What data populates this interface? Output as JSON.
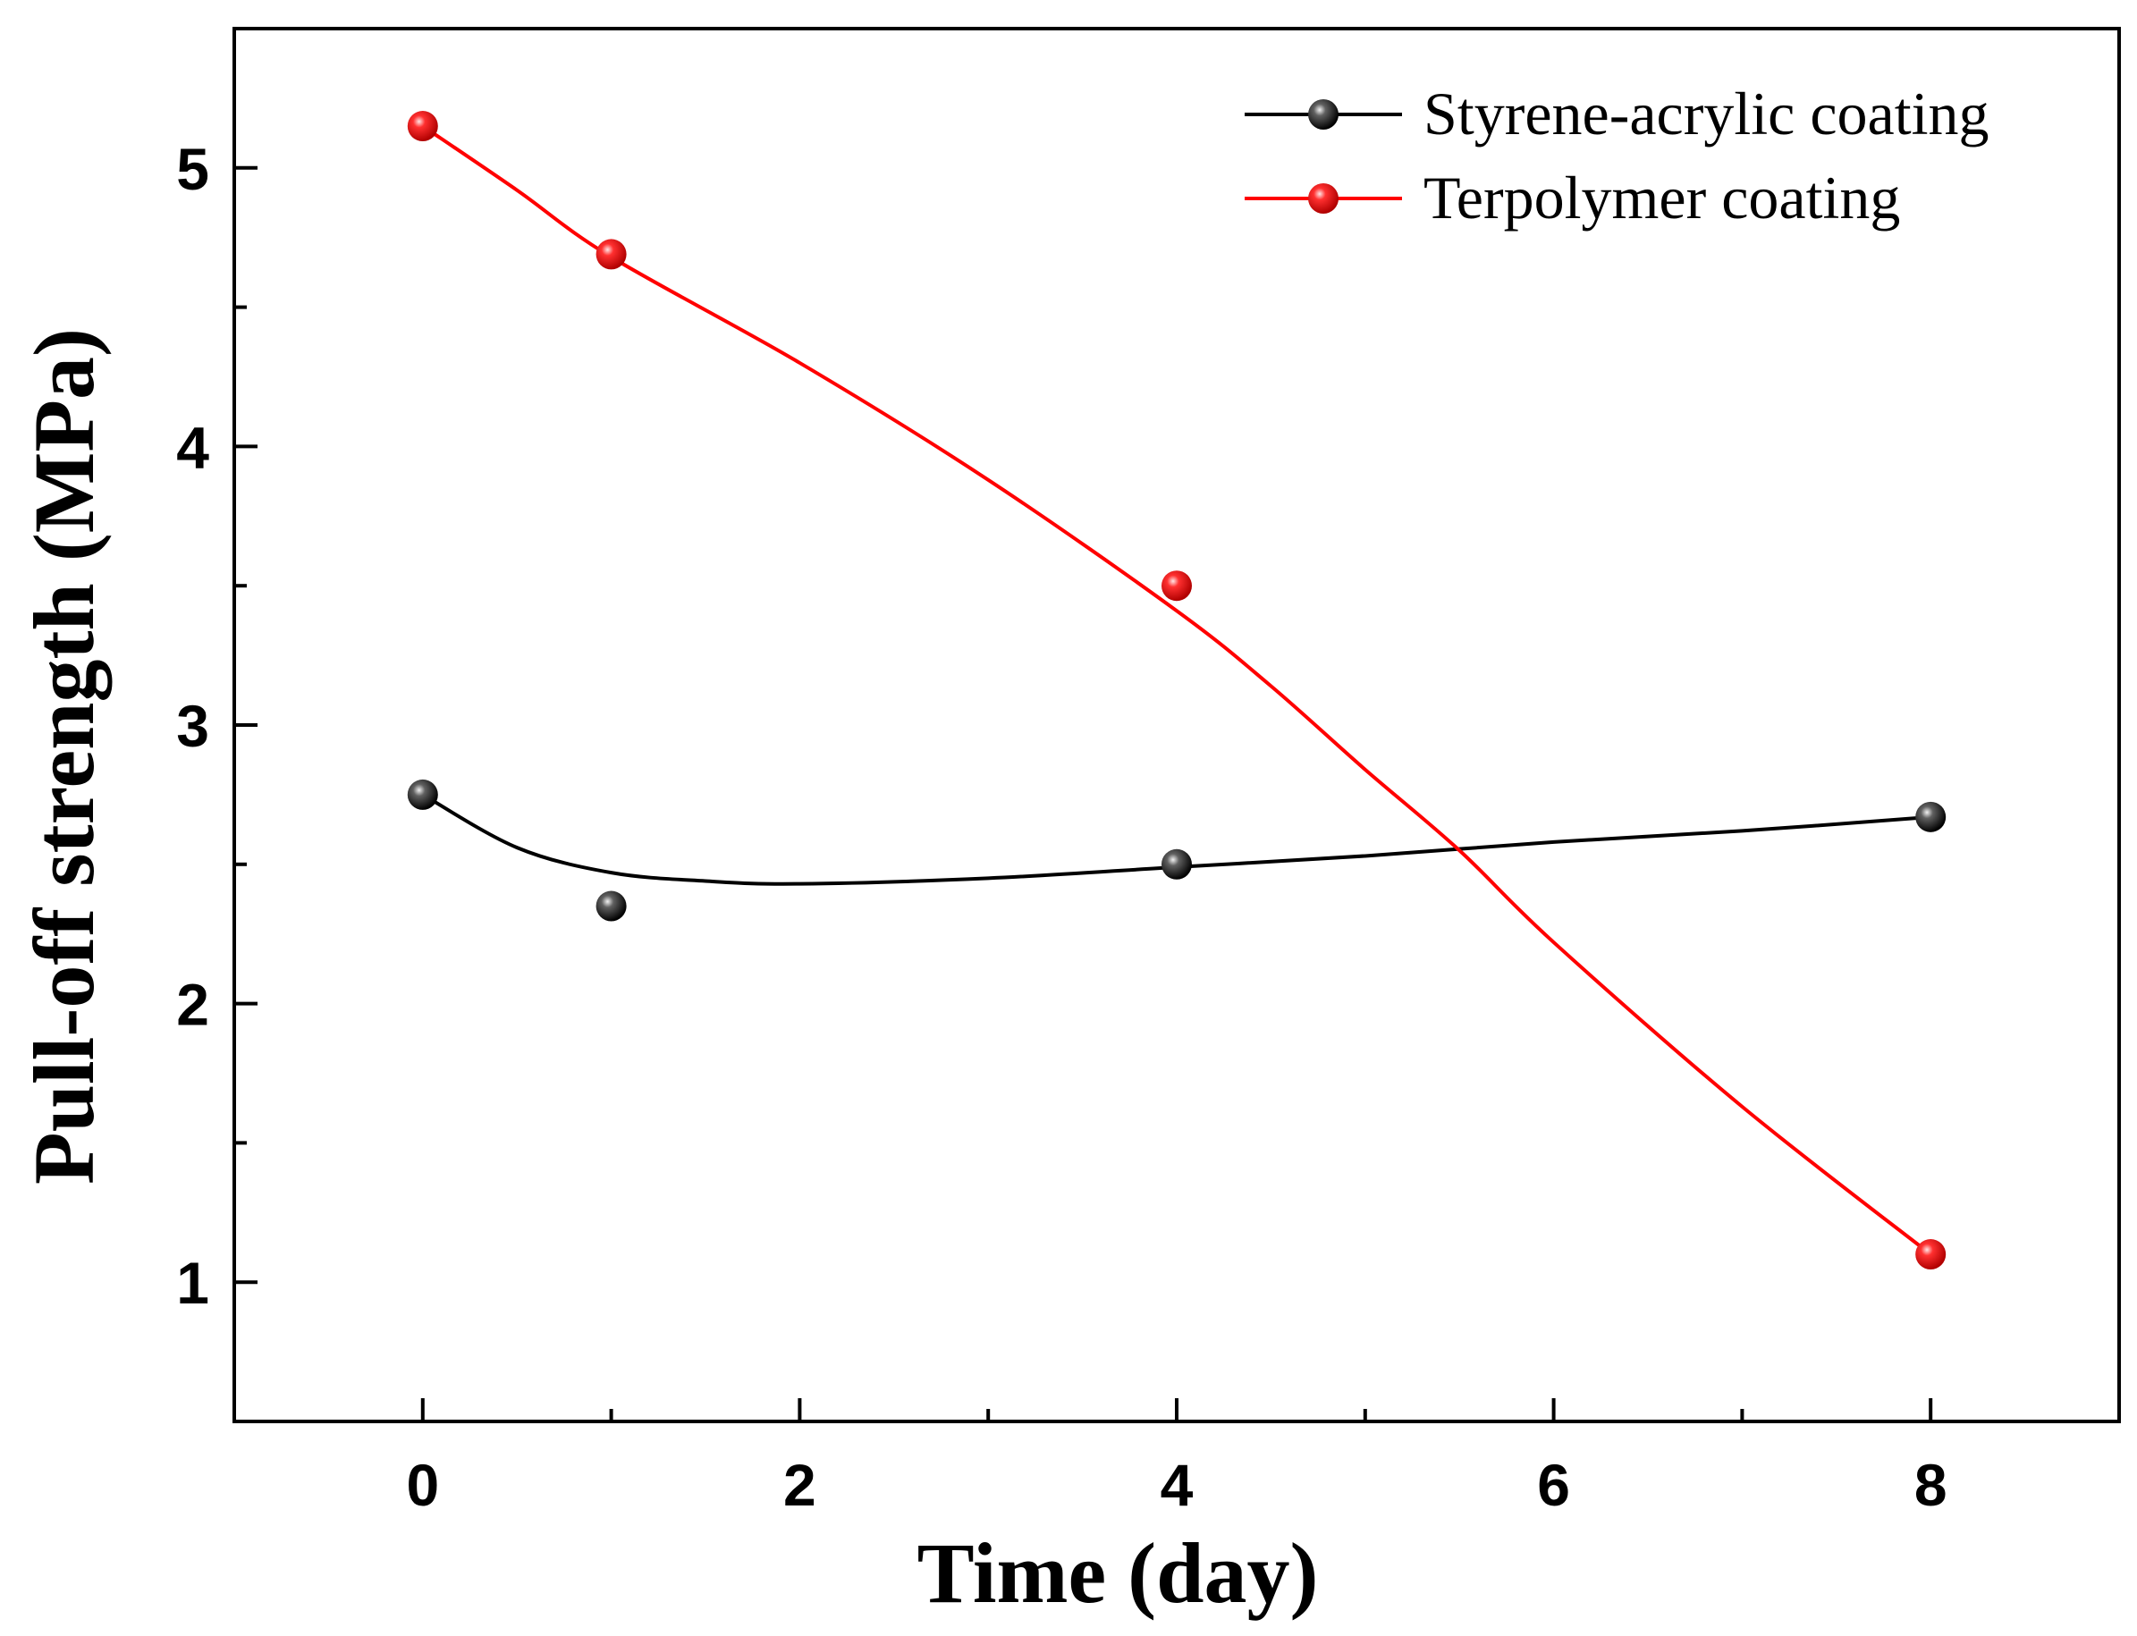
{
  "chart_data": {
    "type": "line",
    "title": "",
    "xlabel": "Time (day)",
    "ylabel": "Pull-off strength (MPa)",
    "xlim": [
      -1,
      9
    ],
    "ylim": [
      0.5,
      5.5
    ],
    "xticks": [
      0,
      2,
      4,
      6,
      8
    ],
    "xticks_minor": [
      1,
      3,
      5,
      7
    ],
    "yticks": [
      1,
      2,
      3,
      4,
      5
    ],
    "yticks_minor": [
      1.5,
      2.5,
      3.5,
      4.5
    ],
    "grid": false,
    "legend_position": "top-right",
    "series": [
      {
        "name": "Styrene-acrylic coating",
        "color": "#000000",
        "x": [
          0,
          1,
          4,
          8
        ],
        "y": [
          2.75,
          2.35,
          2.5,
          2.67
        ],
        "fit_curve": [
          [
            0,
            2.75
          ],
          [
            0.5,
            2.56
          ],
          [
            1,
            2.47
          ],
          [
            1.5,
            2.44
          ],
          [
            2,
            2.43
          ],
          [
            3,
            2.45
          ],
          [
            4,
            2.49
          ],
          [
            5,
            2.53
          ],
          [
            6,
            2.58
          ],
          [
            7,
            2.62
          ],
          [
            8,
            2.67
          ]
        ]
      },
      {
        "name": "Terpolymer coating",
        "color": "#ff0000",
        "x": [
          0,
          1,
          4,
          8
        ],
        "y": [
          5.15,
          4.69,
          3.5,
          1.1
        ],
        "fit_curve": [
          [
            0,
            5.15
          ],
          [
            0.5,
            4.92
          ],
          [
            1,
            4.68
          ],
          [
            2,
            4.3
          ],
          [
            3,
            3.88
          ],
          [
            4,
            3.41
          ],
          [
            4.5,
            3.14
          ],
          [
            5,
            2.84
          ],
          [
            5.5,
            2.55
          ],
          [
            6,
            2.22
          ],
          [
            7,
            1.63
          ],
          [
            8,
            1.1
          ]
        ]
      }
    ]
  }
}
